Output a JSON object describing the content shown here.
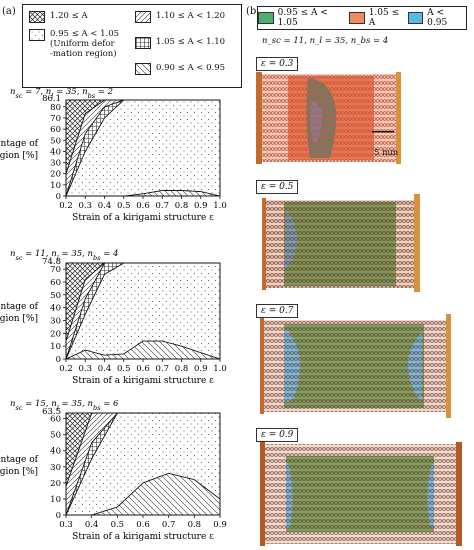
{
  "panel_a_tag": "(a)",
  "panel_b_tag": "(b)",
  "legend_a": {
    "items": [
      {
        "pattern": "crosshatch",
        "text": "1.20 ≤ A"
      },
      {
        "pattern": "dots",
        "text": "0.95 ≤ A < 1.05\n(Uniform defor\n-mation region)"
      },
      {
        "pattern": "diag",
        "text": "1.10 ≤ A < 1.20"
      },
      {
        "pattern": "grid",
        "text": "1.05 ≤ A < 1.10"
      },
      {
        "pattern": "antidiag",
        "text": "0.90 ≤ A < 0.95"
      }
    ]
  },
  "legend_b": {
    "items": [
      {
        "color": "#4caf6e",
        "text": "0.95 ≤ A < 1.05"
      },
      {
        "color": "#f08a60",
        "text": "1.05 ≤ A"
      },
      {
        "color": "#59b8e6",
        "text": "A < 0.95"
      }
    ]
  },
  "info_b": "n_sc = 11, n_l = 35, n_bs = 4",
  "photos": [
    {
      "eps": "ε = 0.3",
      "scale_label": "5 mm"
    },
    {
      "eps": "ε = 0.5"
    },
    {
      "eps": "ε = 0.7"
    },
    {
      "eps": "ε = 0.9"
    }
  ],
  "colors": {
    "line": "#111111",
    "pattern": "#333333"
  },
  "chart_data": [
    {
      "type": "area",
      "title": "n_sc = 7, n_l = 35, n_bs = 2",
      "xlabel": "Strain of a kirigami structure ε",
      "ylabel": "Percentage of each region [%]",
      "xlim": [
        0.2,
        1.0
      ],
      "ylim": [
        0,
        86.1
      ],
      "ymax_label": "86.1",
      "xticks": [
        "0.2",
        "0.3",
        "0.4",
        "0.5",
        "0.6",
        "0.7",
        "0.8",
        "0.9",
        "1.0"
      ],
      "yticks": [
        "0",
        "10",
        "20",
        "30",
        "40",
        "50",
        "60",
        "70",
        "80"
      ],
      "x": [
        0.2,
        0.3,
        0.4,
        0.5,
        0.6,
        0.7,
        0.8,
        0.9,
        1.0
      ],
      "series": [
        {
          "pattern": "antidiag",
          "values": [
            0,
            0,
            0,
            0,
            2,
            5,
            5,
            4,
            0
          ]
        },
        {
          "pattern": "dots",
          "values": [
            0,
            40,
            70,
            86.1,
            84.1,
            81.1,
            81.1,
            82.1,
            86.1
          ]
        },
        {
          "pattern": "grid",
          "values": [
            0,
            16,
            10,
            0,
            0,
            0,
            0,
            0,
            0
          ]
        },
        {
          "pattern": "diag",
          "values": [
            20,
            18,
            6.1,
            0,
            0,
            0,
            0,
            0,
            0
          ]
        },
        {
          "pattern": "crosshatch",
          "values": [
            66.1,
            12.1,
            0,
            0,
            0,
            0,
            0,
            0,
            0
          ]
        }
      ]
    },
    {
      "type": "area",
      "title": "n_sc = 11, n_l = 35, n_bs = 4",
      "xlabel": "Strain of a kirigami structure ε",
      "ylabel": "Percentage of each region [%]",
      "xlim": [
        0.2,
        1.0
      ],
      "ylim": [
        0,
        74.8
      ],
      "ymax_label": "74.8",
      "xticks": [
        "0.2",
        "0.3",
        "0.4",
        "0.5",
        "0.6",
        "0.7",
        "0.8",
        "0.9",
        "1.0"
      ],
      "yticks": [
        "0",
        "10",
        "20",
        "30",
        "40",
        "50",
        "60",
        "70"
      ],
      "x": [
        0.2,
        0.3,
        0.4,
        0.5,
        0.6,
        0.7,
        0.8,
        0.9,
        1.0
      ],
      "series": [
        {
          "pattern": "antidiag",
          "values": [
            0,
            7,
            3,
            4,
            14,
            14,
            10,
            5,
            0
          ]
        },
        {
          "pattern": "dots",
          "values": [
            0,
            28,
            63,
            70.8,
            60.8,
            60.8,
            64.8,
            69.8,
            74.8
          ]
        },
        {
          "pattern": "grid",
          "values": [
            0,
            12,
            8.8,
            0,
            0,
            0,
            0,
            0,
            0
          ]
        },
        {
          "pattern": "diag",
          "values": [
            14,
            15,
            0,
            0,
            0,
            0,
            0,
            0,
            0
          ]
        },
        {
          "pattern": "crosshatch",
          "values": [
            60.8,
            12.8,
            0,
            0,
            0,
            0,
            0,
            0,
            0
          ]
        }
      ]
    },
    {
      "type": "area",
      "title": "n_sc = 15, n_l = 35, n_bs = 6",
      "xlabel": "Strain of a kirigami structure ε",
      "ylabel": "Percentage of each region [%]",
      "xlim": [
        0.3,
        0.9
      ],
      "ylim": [
        0,
        63.5
      ],
      "ymax_label": "63.5",
      "xticks": [
        "0.3",
        "0.4",
        "0.5",
        "0.6",
        "0.7",
        "0.8",
        "0.9"
      ],
      "yticks": [
        "0",
        "10",
        "20",
        "30",
        "40",
        "50",
        "60"
      ],
      "x": [
        0.3,
        0.4,
        0.5,
        0.6,
        0.7,
        0.8,
        0.9
      ],
      "series": [
        {
          "pattern": "antidiag",
          "values": [
            0,
            0,
            5,
            20,
            26,
            22,
            10
          ]
        },
        {
          "pattern": "dots",
          "values": [
            0,
            35,
            58.5,
            43.5,
            37.5,
            41.5,
            53.5
          ]
        },
        {
          "pattern": "grid",
          "values": [
            0,
            10,
            0,
            0,
            0,
            0,
            0
          ]
        },
        {
          "pattern": "diag",
          "values": [
            18,
            18.5,
            0,
            0,
            0,
            0,
            0
          ]
        },
        {
          "pattern": "crosshatch",
          "values": [
            45.5,
            0,
            0,
            0,
            0,
            0,
            0
          ]
        }
      ]
    }
  ]
}
